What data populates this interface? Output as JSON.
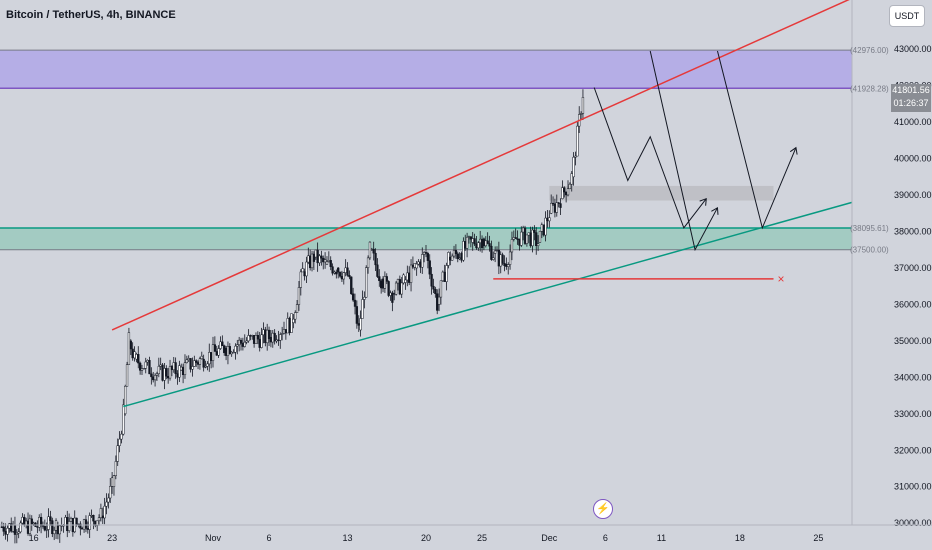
{
  "header": {
    "title": "Bitcoin / TetherUS, 4h, BINANCE"
  },
  "toolbar": {
    "currency_label": "USDT"
  },
  "last_price": {
    "price": "41801.56",
    "countdown": "01:26:37"
  },
  "flash_icon": "lightning-icon",
  "colors": {
    "background": "#d1d4dc",
    "candle": "#131722",
    "wedge_upper": "#e5393a",
    "wedge_lower": "#089981",
    "supply_zone": "#b5aee6",
    "supply_line": "#7e57c2",
    "demand_zone": "#a3cbc2",
    "demand_line": "#089981",
    "gray_zone": "#bfc0c6",
    "projection": "#131722",
    "target_line": "#e5393a"
  },
  "chart_data": {
    "type": "candlestick",
    "instrument": "Bitcoin / TetherUS",
    "timeframe": "4h",
    "exchange": "BINANCE",
    "y_axis": {
      "ticks": [
        30000,
        31000,
        32000,
        33000,
        34000,
        35000,
        36000,
        37000,
        38000,
        39000,
        40000,
        41000,
        42000,
        43000
      ],
      "tick_labels": [
        "30000.00",
        "31000.00",
        "32000.00",
        "33000.00",
        "34000.00",
        "35000.00",
        "36000.00",
        "37000.00",
        "38000.00",
        "39000.00",
        "40000.00",
        "41000.00",
        "42000.00",
        "43000.00"
      ],
      "ylim": [
        29950,
        44350
      ]
    },
    "x_axis": {
      "tick_labels": [
        "16",
        "23",
        "Nov",
        "6",
        "13",
        "20",
        "25",
        "Dec",
        "6",
        "11",
        "18",
        "25"
      ],
      "tick_dates": [
        "2023-10-16",
        "2023-10-23",
        "2023-11-01",
        "2023-11-06",
        "2023-11-13",
        "2023-11-20",
        "2023-11-25",
        "2023-12-01",
        "2023-12-06",
        "2023-12-11",
        "2023-12-18",
        "2023-12-25"
      ],
      "xlim": [
        "2023-10-13",
        "2023-12-28"
      ]
    },
    "price_levels": [
      {
        "label": "(42976.00)",
        "price": 42976.0
      },
      {
        "label": "(41928.28)",
        "price": 41928.28
      },
      {
        "label": "(38095.61)",
        "price": 38095.61
      },
      {
        "label": "(37500.00)",
        "price": 37500.0
      }
    ],
    "last_price": 41801.56,
    "candles_close_path": [
      [
        "2023-10-13",
        29900
      ],
      [
        "2023-10-18",
        29950
      ],
      [
        "2023-10-20",
        29980
      ],
      [
        "2023-10-22",
        30200
      ],
      [
        "2023-10-23",
        31000
      ],
      [
        "2023-10-24",
        33000
      ],
      [
        "2023-10-24T12",
        35000
      ],
      [
        "2023-10-25",
        34500
      ],
      [
        "2023-10-27",
        34100
      ],
      [
        "2023-10-29",
        34200
      ],
      [
        "2023-10-31",
        34500
      ],
      [
        "2023-11-02",
        34800
      ],
      [
        "2023-11-04",
        35000
      ],
      [
        "2023-11-06",
        35100
      ],
      [
        "2023-11-08",
        35500
      ],
      [
        "2023-11-09",
        36900
      ],
      [
        "2023-11-10",
        37300
      ],
      [
        "2023-11-11",
        37100
      ],
      [
        "2023-11-12",
        37000
      ],
      [
        "2023-11-13",
        36800
      ],
      [
        "2023-11-14",
        35300
      ],
      [
        "2023-11-15",
        37500
      ],
      [
        "2023-11-16",
        36700
      ],
      [
        "2023-11-17",
        36300
      ],
      [
        "2023-11-18",
        36600
      ],
      [
        "2023-11-19",
        37000
      ],
      [
        "2023-11-20",
        37400
      ],
      [
        "2023-11-21",
        36000
      ],
      [
        "2023-11-22",
        37300
      ],
      [
        "2023-11-23",
        37400
      ],
      [
        "2023-11-24",
        37700
      ],
      [
        "2023-11-25",
        37800
      ],
      [
        "2023-11-26",
        37400
      ],
      [
        "2023-11-27",
        37100
      ],
      [
        "2023-11-28",
        37800
      ],
      [
        "2023-11-29",
        37900
      ],
      [
        "2023-11-30",
        37700
      ],
      [
        "2023-12-01",
        38500
      ],
      [
        "2023-12-02",
        38900
      ],
      [
        "2023-12-03",
        39500
      ],
      [
        "2023-12-04",
        41800
      ]
    ],
    "drawings": {
      "wedge_upper": [
        [
          "2023-10-23",
          35300
        ],
        [
          "2023-12-28",
          44400
        ]
      ],
      "wedge_lower": [
        [
          "2023-10-24",
          33200
        ],
        [
          "2023-12-28",
          38800
        ]
      ],
      "supply_zone": [
        41928.28,
        42976.0
      ],
      "demand_zone": [
        37500.0,
        38095.61
      ],
      "gray_zone": {
        "from": "2023-12-01",
        "to": "2023-12-21",
        "low": 38850,
        "high": 39250
      },
      "target_line": {
        "from": "2023-11-26",
        "to": "2023-12-21",
        "price": 36700
      },
      "projection_path": [
        [
          "2023-12-05",
          41950
        ],
        [
          "2023-12-08",
          39400
        ],
        [
          "2023-12-10",
          40600
        ],
        [
          "2023-12-13",
          38100
        ],
        [
          "2023-12-15",
          38900
        ]
      ],
      "projection_path_2": [
        [
          "2023-12-10",
          42950
        ],
        [
          "2023-12-14",
          37500
        ],
        [
          "2023-12-16",
          38650
        ]
      ],
      "projection_path_3": [
        [
          "2023-12-16",
          42950
        ],
        [
          "2023-12-20",
          38100
        ],
        [
          "2023-12-23",
          40300
        ]
      ]
    }
  }
}
